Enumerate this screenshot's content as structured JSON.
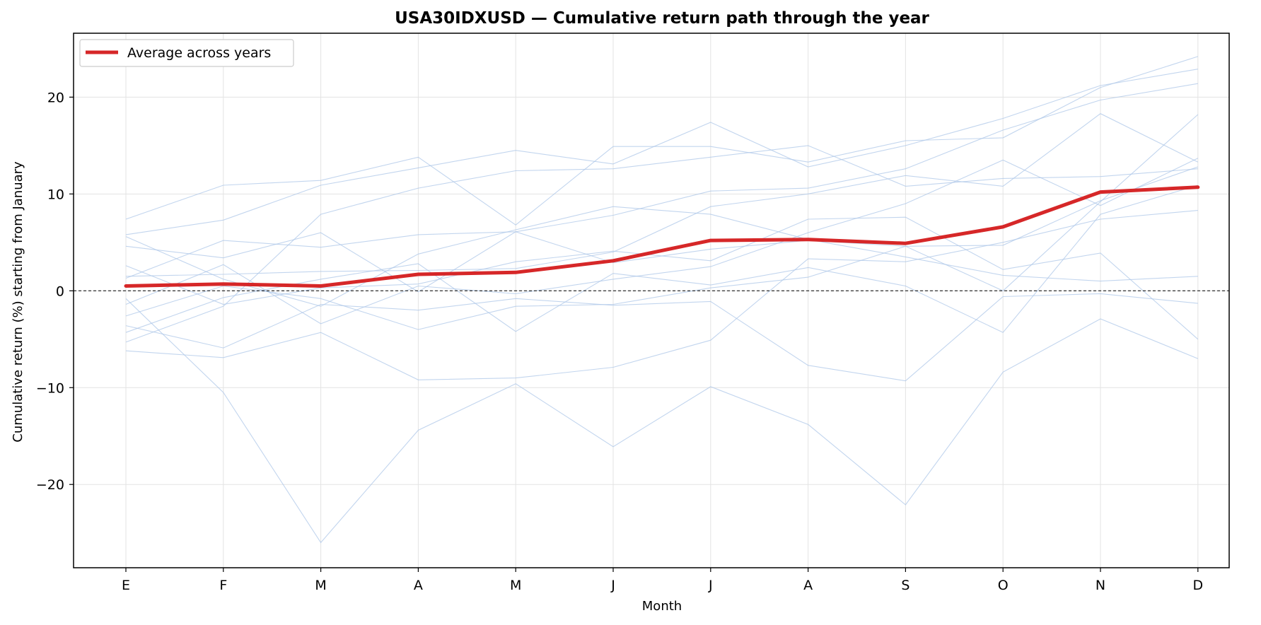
{
  "chart_data": {
    "type": "line",
    "title": "USA30IDXUSD — Cumulative return path through the year",
    "xlabel": "Month",
    "ylabel": "Cumulative return (%) starting from January",
    "categories": [
      "E",
      "F",
      "M",
      "A",
      "M",
      "J",
      "J",
      "A",
      "S",
      "O",
      "N",
      "D"
    ],
    "ylim": [
      -28.6,
      26.6
    ],
    "yticks": [
      -20,
      -10,
      0,
      10,
      20
    ],
    "ytick_labels": [
      "−20",
      "−10",
      "0",
      "10",
      "20"
    ],
    "grid": true,
    "zero_line": true,
    "legend": {
      "position": "top-left",
      "entries": [
        "Average across years"
      ]
    },
    "colors": {
      "average": "#d62728",
      "years": "#aec7e8"
    },
    "average": {
      "name": "Average across years",
      "values": [
        0.5,
        0.7,
        0.5,
        1.7,
        1.9,
        3.1,
        5.2,
        5.3,
        4.9,
        6.6,
        10.2,
        10.7
      ]
    },
    "years": [
      [
        7.4,
        10.9,
        11.4,
        13.8,
        6.8,
        14.9,
        14.9,
        13.3,
        15.5,
        15.8,
        21.0,
        24.2
      ],
      [
        5.8,
        7.3,
        10.9,
        12.7,
        14.5,
        13.1,
        17.4,
        12.8,
        15.0,
        17.8,
        21.2,
        22.9
      ],
      [
        5.6,
        1.2,
        -1.6,
        3.8,
        6.3,
        8.7,
        7.9,
        5.3,
        3.5,
        1.6,
        1.0,
        1.5
      ],
      [
        4.6,
        3.4,
        6.0,
        -0.1,
        6.1,
        7.8,
        10.3,
        10.6,
        12.6,
        16.6,
        19.7,
        21.4
      ],
      [
        2.6,
        -1.4,
        0.3,
        0.7,
        3.0,
        4.1,
        3.1,
        7.4,
        7.6,
        2.2,
        3.9,
        -5.0
      ],
      [
        1.5,
        1.7,
        2.0,
        2.1,
        2.3,
        4.0,
        8.7,
        10.0,
        11.9,
        10.8,
        18.3,
        13.3
      ],
      [
        1.3,
        5.2,
        4.5,
        5.8,
        6.1,
        2.9,
        4.3,
        5.2,
        4.6,
        4.7,
        9.3,
        12.8
      ],
      [
        -0.8,
        -10.5,
        -26.0,
        -14.4,
        -9.6,
        -16.1,
        -9.9,
        -13.8,
        -22.1,
        -8.4,
        -2.9,
        -7.0
      ],
      [
        -2.6,
        0.5,
        -0.8,
        -4.0,
        -1.6,
        -1.4,
        0.3,
        1.4,
        4.6,
        0.0,
        9.2,
        18.2
      ],
      [
        -3.6,
        -5.9,
        -1.4,
        -2.0,
        -0.8,
        -1.5,
        -1.1,
        -7.7,
        -9.3,
        -0.6,
        -0.3,
        -1.3
      ],
      [
        -4.3,
        -0.7,
        1.2,
        2.8,
        -4.2,
        1.8,
        0.6,
        2.4,
        0.5,
        -4.3,
        7.9,
        10.9
      ],
      [
        -5.3,
        -1.6,
        7.9,
        10.6,
        12.4,
        12.6,
        13.8,
        15.0,
        10.8,
        11.6,
        11.8,
        12.6
      ],
      [
        -6.2,
        -6.9,
        -4.3,
        -9.2,
        -9.0,
        -7.9,
        -5.1,
        3.3,
        3.0,
        5.0,
        7.4,
        8.3
      ],
      [
        -1.4,
        2.7,
        -3.4,
        0.5,
        -0.3,
        1.2,
        2.5,
        6.0,
        9.0,
        13.5,
        8.8,
        13.7
      ]
    ]
  }
}
